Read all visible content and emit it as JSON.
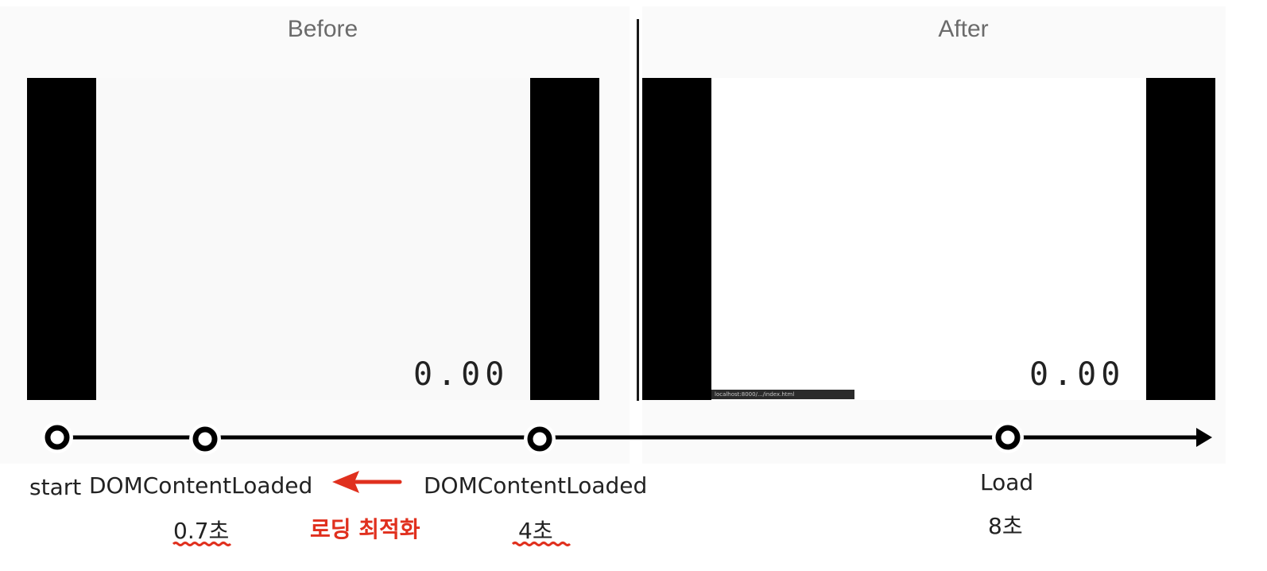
{
  "panels": {
    "before": {
      "title": "Before",
      "counter": "0.00"
    },
    "after": {
      "title": "After",
      "counter": "0.00",
      "status_url": "localhost:8000/.../index.html"
    }
  },
  "timeline": {
    "events": [
      {
        "id": "start",
        "label": "start",
        "time": ""
      },
      {
        "id": "dcl_after",
        "label": "DOMContentLoaded",
        "time": "0.7초"
      },
      {
        "id": "dcl_before",
        "label": "DOMContentLoaded",
        "time": "4초"
      },
      {
        "id": "load",
        "label": "Load",
        "time": "8초"
      }
    ],
    "annotation": "로딩 최적화"
  },
  "colors": {
    "accent": "#e0301e",
    "line": "#000000",
    "panel_title": "#6b6b6b"
  }
}
